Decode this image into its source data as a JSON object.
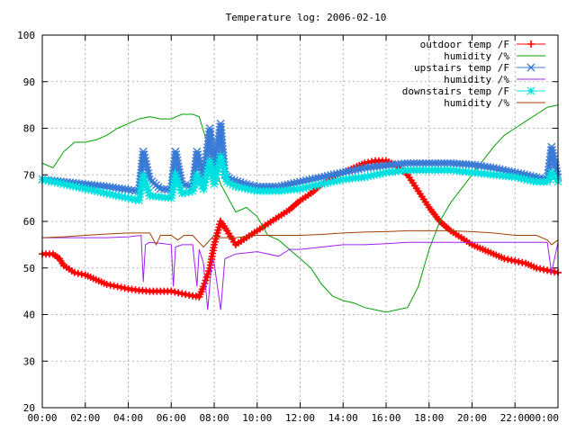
{
  "chart_data": {
    "type": "line",
    "title": "Temperature log: 2006-02-10",
    "xlabel": "",
    "ylabel": "",
    "xlim": [
      0,
      24
    ],
    "ylim": [
      20,
      100
    ],
    "grid": true,
    "legend_position": "top-right",
    "x_tick_labels": [
      "00:00",
      "02:00",
      "04:00",
      "06:00",
      "08:00",
      "10:00",
      "12:00",
      "14:00",
      "16:00",
      "18:00",
      "20:00",
      "22:00",
      "00:00"
    ],
    "y_ticks": [
      20,
      30,
      40,
      50,
      60,
      70,
      80,
      90,
      100
    ],
    "series": [
      {
        "name": "outdoor temp /F",
        "color": "#ff0000",
        "marker": "plus",
        "x": [
          0,
          0.5,
          0.8,
          1,
          1.5,
          2,
          2.5,
          3,
          3.5,
          4,
          4.5,
          5,
          5.5,
          6,
          6.5,
          7,
          7.3,
          7.5,
          7.8,
          8,
          8.3,
          8.6,
          9,
          9.5,
          10,
          10.5,
          11,
          11.5,
          12,
          12.5,
          13,
          13.5,
          14,
          14.5,
          15,
          15.5,
          16,
          16.5,
          17,
          17.5,
          18,
          18.5,
          19,
          19.5,
          20,
          20.5,
          21,
          21.5,
          22,
          22.5,
          23,
          23.5,
          24
        ],
        "y": [
          53,
          53,
          52,
          50.5,
          49,
          48.5,
          47.5,
          46.5,
          46,
          45.5,
          45.2,
          45,
          45,
          45,
          44.5,
          44,
          43.8,
          46,
          50,
          55,
          60,
          58,
          55,
          56.5,
          58,
          59.5,
          61,
          62.5,
          64.5,
          66,
          68,
          69.5,
          70.5,
          71.5,
          72.5,
          73,
          73,
          72,
          70,
          66.5,
          63,
          60,
          58,
          56.5,
          55,
          54,
          53,
          52,
          51.5,
          51,
          50,
          49.5,
          49
        ]
      },
      {
        "name": "humidity /%",
        "color": "#00a000",
        "marker": "none",
        "x": [
          0,
          0.5,
          1,
          1.5,
          2,
          2.5,
          3,
          3.5,
          4,
          4.5,
          5,
          5.5,
          6,
          6.5,
          7,
          7.3,
          7.6,
          8,
          8.3,
          9,
          9.5,
          10,
          10.5,
          11,
          11.5,
          12,
          12.5,
          13,
          13.5,
          14,
          14.5,
          15,
          15.5,
          16,
          16.5,
          17,
          17.5,
          18,
          18.5,
          19,
          19.5,
          20,
          20.5,
          21,
          21.5,
          22,
          22.5,
          23,
          23.5,
          24
        ],
        "y": [
          72.5,
          71.5,
          75,
          77,
          77,
          77.5,
          78.5,
          80,
          81,
          82,
          82.5,
          82,
          82,
          83,
          83,
          82.5,
          78,
          72,
          68,
          62,
          63,
          61,
          57,
          56,
          54,
          52,
          50,
          46.5,
          44,
          43,
          42.5,
          41.5,
          41,
          40.5,
          41,
          41.5,
          46,
          54,
          60,
          64,
          67,
          70,
          73,
          76,
          78.5,
          80,
          81.5,
          83,
          84.5,
          85
        ]
      },
      {
        "name": "upstairs temp /F",
        "color": "#3a7bd5",
        "marker": "x",
        "x": [
          0,
          1,
          2,
          3,
          4,
          4.5,
          4.7,
          5,
          5.5,
          6,
          6.2,
          6.5,
          7,
          7.2,
          7.5,
          7.8,
          8,
          8.3,
          8.5,
          8.8,
          9.5,
          10,
          11,
          12,
          13,
          14,
          15,
          16,
          17,
          18,
          19,
          20,
          21,
          22,
          23,
          23.5,
          23.7,
          24
        ],
        "y": [
          69,
          68.5,
          68,
          67.5,
          66.8,
          66.5,
          75,
          69,
          67,
          66.8,
          75,
          68,
          67.5,
          75,
          69,
          80,
          71,
          81,
          70,
          69,
          68,
          67.5,
          67.5,
          68.5,
          69.5,
          70.5,
          71.5,
          72,
          72.5,
          72.5,
          72.5,
          72.2,
          71.5,
          70.5,
          69.5,
          69,
          76,
          69.5
        ]
      },
      {
        "name": "humidity /%",
        "color": "#a020f0",
        "marker": "none",
        "x": [
          0,
          1,
          2,
          3,
          4,
          4.6,
          4.7,
          4.8,
          5,
          5.5,
          6,
          6.1,
          6.2,
          6.5,
          7,
          7.2,
          7.3,
          7.5,
          7.7,
          7.9,
          8,
          8.3,
          8.5,
          9,
          10,
          11,
          11.5,
          12,
          13,
          14,
          15,
          16,
          17,
          18,
          19,
          20,
          21,
          22,
          23,
          23.5,
          23.7,
          24
        ],
        "y": [
          56.5,
          56.5,
          56.5,
          56.5,
          56.7,
          57,
          47,
          55,
          55.5,
          55.3,
          55,
          46,
          54.5,
          55,
          55,
          46,
          54,
          51,
          41,
          52,
          51,
          41,
          52,
          53,
          53.5,
          52.5,
          54,
          54,
          54.5,
          55,
          55,
          55.2,
          55.5,
          55.5,
          55.5,
          55.5,
          55.5,
          55.5,
          55.5,
          55.5,
          49,
          55.5
        ]
      },
      {
        "name": "downstairs temp /F",
        "color": "#00e0e0",
        "marker": "star",
        "x": [
          0,
          1,
          2,
          3,
          4,
          4.5,
          4.7,
          5,
          6,
          6.2,
          6.5,
          7,
          7.2,
          7.5,
          7.8,
          8,
          8.3,
          8.6,
          9,
          10,
          11,
          12,
          13,
          14,
          15,
          16,
          17,
          18,
          19,
          20,
          21,
          22,
          23,
          23.5,
          23.7,
          24
        ],
        "y": [
          69,
          68,
          67,
          66,
          65,
          64.5,
          70,
          65.5,
          65,
          70,
          66,
          66.5,
          70,
          67,
          73,
          68,
          74,
          68.5,
          67.5,
          66.5,
          66.5,
          67,
          68,
          69,
          69.5,
          70.5,
          71,
          71,
          71,
          70.5,
          70,
          69.5,
          68.5,
          68.5,
          70.5,
          68.5
        ]
      },
      {
        "name": "humidity /%",
        "color": "#a04000",
        "marker": "none",
        "x": [
          0,
          1,
          2,
          3,
          4,
          5,
          5.3,
          5.5,
          6,
          6.3,
          6.6,
          7,
          7.3,
          7.5,
          8,
          8.3,
          9,
          10,
          11,
          12,
          13,
          14,
          15,
          16,
          17,
          18,
          19,
          20,
          21,
          22,
          23,
          23.5,
          23.7,
          24
        ],
        "y": [
          56.5,
          56.7,
          57,
          57.3,
          57.5,
          57.5,
          55,
          57,
          57,
          56,
          57,
          57,
          55.5,
          54.5,
          57,
          56.5,
          56.5,
          57,
          57,
          57,
          57.2,
          57.5,
          57.7,
          57.8,
          58,
          58,
          58,
          57.8,
          57.5,
          57,
          57,
          56,
          55,
          56
        ]
      }
    ]
  }
}
